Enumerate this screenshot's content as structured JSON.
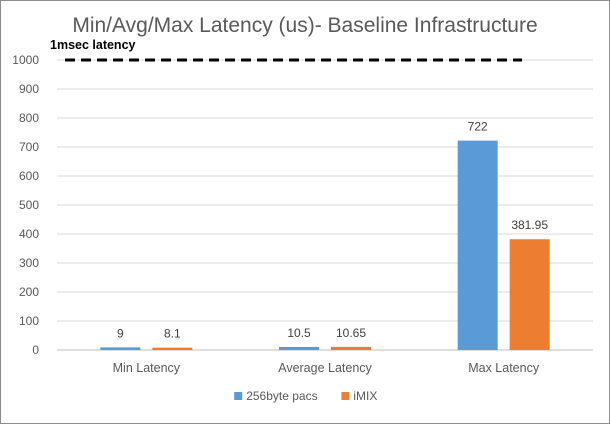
{
  "chart_data": {
    "type": "bar",
    "title": "Min/Avg/Max Latency (us)- Baseline Infrastructure",
    "categories": [
      "Min Latency",
      "Average Latency",
      "Max Latency"
    ],
    "series": [
      {
        "name": "256byte pacs",
        "values": [
          9,
          10.5,
          722
        ],
        "labels": [
          "9",
          "10.5",
          "722"
        ],
        "color": "#5b9bd5"
      },
      {
        "name": "iMIX",
        "values": [
          8.1,
          10.65,
          381.95
        ],
        "labels": [
          "8.1",
          "10.65",
          "381.95"
        ],
        "color": "#ed7d31"
      }
    ],
    "ylim": [
      0,
      1000
    ],
    "yticks": [
      0,
      100,
      200,
      300,
      400,
      500,
      600,
      700,
      800,
      900,
      1000
    ],
    "grid": true,
    "legend": "bottom",
    "reference_line": {
      "value": 1000,
      "label": "1msec latency",
      "style": "dashed",
      "color": "#000000"
    }
  }
}
